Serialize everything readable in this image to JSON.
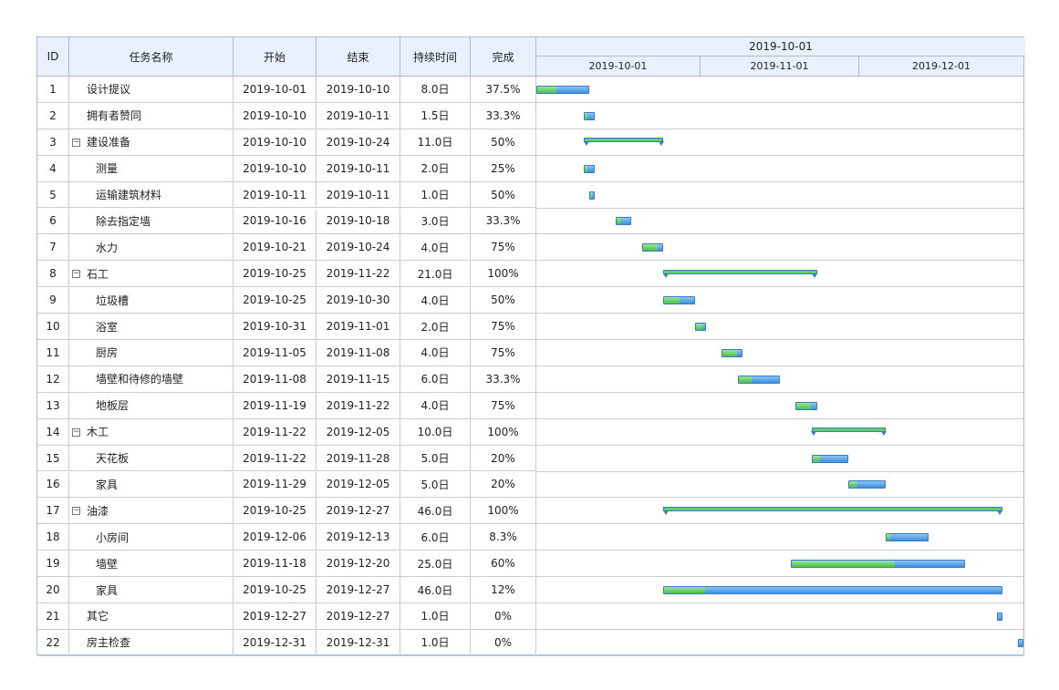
{
  "columns": [
    "ID",
    "任务名称",
    "开始",
    "结束",
    "持续时间",
    "完成"
  ],
  "timeline": {
    "title": "2019-10-01",
    "months": [
      "2019-10-01",
      "2019-11-01",
      "2019-12-01"
    ]
  },
  "tasks": [
    {
      "id": 1,
      "name": "设计提议",
      "start": "2019-10-01",
      "end": "2019-10-10",
      "duration": "8.0日",
      "complete": "37.5%",
      "level": 0,
      "group": false
    },
    {
      "id": 2,
      "name": "拥有者赞同",
      "start": "2019-10-10",
      "end": "2019-10-11",
      "duration": "1.5日",
      "complete": "33.3%",
      "level": 0,
      "group": false
    },
    {
      "id": 3,
      "name": "建设准备",
      "start": "2019-10-10",
      "end": "2019-10-24",
      "duration": "11.0日",
      "complete": "50%",
      "level": 0,
      "group": true
    },
    {
      "id": 4,
      "name": "测量",
      "start": "2019-10-10",
      "end": "2019-10-11",
      "duration": "2.0日",
      "complete": "25%",
      "level": 1,
      "group": false
    },
    {
      "id": 5,
      "name": "运输建筑材料",
      "start": "2019-10-11",
      "end": "2019-10-11",
      "duration": "1.0日",
      "complete": "50%",
      "level": 1,
      "group": false
    },
    {
      "id": 6,
      "name": "除去指定墙",
      "start": "2019-10-16",
      "end": "2019-10-18",
      "duration": "3.0日",
      "complete": "33.3%",
      "level": 1,
      "group": false
    },
    {
      "id": 7,
      "name": "水力",
      "start": "2019-10-21",
      "end": "2019-10-24",
      "duration": "4.0日",
      "complete": "75%",
      "level": 1,
      "group": false
    },
    {
      "id": 8,
      "name": "石工",
      "start": "2019-10-25",
      "end": "2019-11-22",
      "duration": "21.0日",
      "complete": "100%",
      "level": 0,
      "group": true
    },
    {
      "id": 9,
      "name": "垃圾槽",
      "start": "2019-10-25",
      "end": "2019-10-30",
      "duration": "4.0日",
      "complete": "50%",
      "level": 1,
      "group": false
    },
    {
      "id": 10,
      "name": "浴室",
      "start": "2019-10-31",
      "end": "2019-11-01",
      "duration": "2.0日",
      "complete": "75%",
      "level": 1,
      "group": false
    },
    {
      "id": 11,
      "name": "厨房",
      "start": "2019-11-05",
      "end": "2019-11-08",
      "duration": "4.0日",
      "complete": "75%",
      "level": 1,
      "group": false
    },
    {
      "id": 12,
      "name": "墙壁和待修的墙壁",
      "start": "2019-11-08",
      "end": "2019-11-15",
      "duration": "6.0日",
      "complete": "33.3%",
      "level": 1,
      "group": false
    },
    {
      "id": 13,
      "name": "地板层",
      "start": "2019-11-19",
      "end": "2019-11-22",
      "duration": "4.0日",
      "complete": "75%",
      "level": 1,
      "group": false
    },
    {
      "id": 14,
      "name": "木工",
      "start": "2019-11-22",
      "end": "2019-12-05",
      "duration": "10.0日",
      "complete": "100%",
      "level": 0,
      "group": true
    },
    {
      "id": 15,
      "name": "天花板",
      "start": "2019-11-22",
      "end": "2019-11-28",
      "duration": "5.0日",
      "complete": "20%",
      "level": 1,
      "group": false
    },
    {
      "id": 16,
      "name": "家具",
      "start": "2019-11-29",
      "end": "2019-12-05",
      "duration": "5.0日",
      "complete": "20%",
      "level": 1,
      "group": false
    },
    {
      "id": 17,
      "name": "油漆",
      "start": "2019-10-25",
      "end": "2019-12-27",
      "duration": "46.0日",
      "complete": "100%",
      "level": 0,
      "group": true
    },
    {
      "id": 18,
      "name": "小房间",
      "start": "2019-12-06",
      "end": "2019-12-13",
      "duration": "6.0日",
      "complete": "8.3%",
      "level": 1,
      "group": false
    },
    {
      "id": 19,
      "name": "墙壁",
      "start": "2019-11-18",
      "end": "2019-12-20",
      "duration": "25.0日",
      "complete": "60%",
      "level": 1,
      "group": false
    },
    {
      "id": 20,
      "name": "家具",
      "start": "2019-10-25",
      "end": "2019-12-27",
      "duration": "46.0日",
      "complete": "12%",
      "level": 1,
      "group": false
    },
    {
      "id": 21,
      "name": "其它",
      "start": "2019-12-27",
      "end": "2019-12-27",
      "duration": "1.0日",
      "complete": "0%",
      "level": 0,
      "group": false
    },
    {
      "id": 22,
      "name": "房主检查",
      "start": "2019-12-31",
      "end": "2019-12-31",
      "duration": "1.0日",
      "complete": "0%",
      "level": 0,
      "group": false
    }
  ]
}
